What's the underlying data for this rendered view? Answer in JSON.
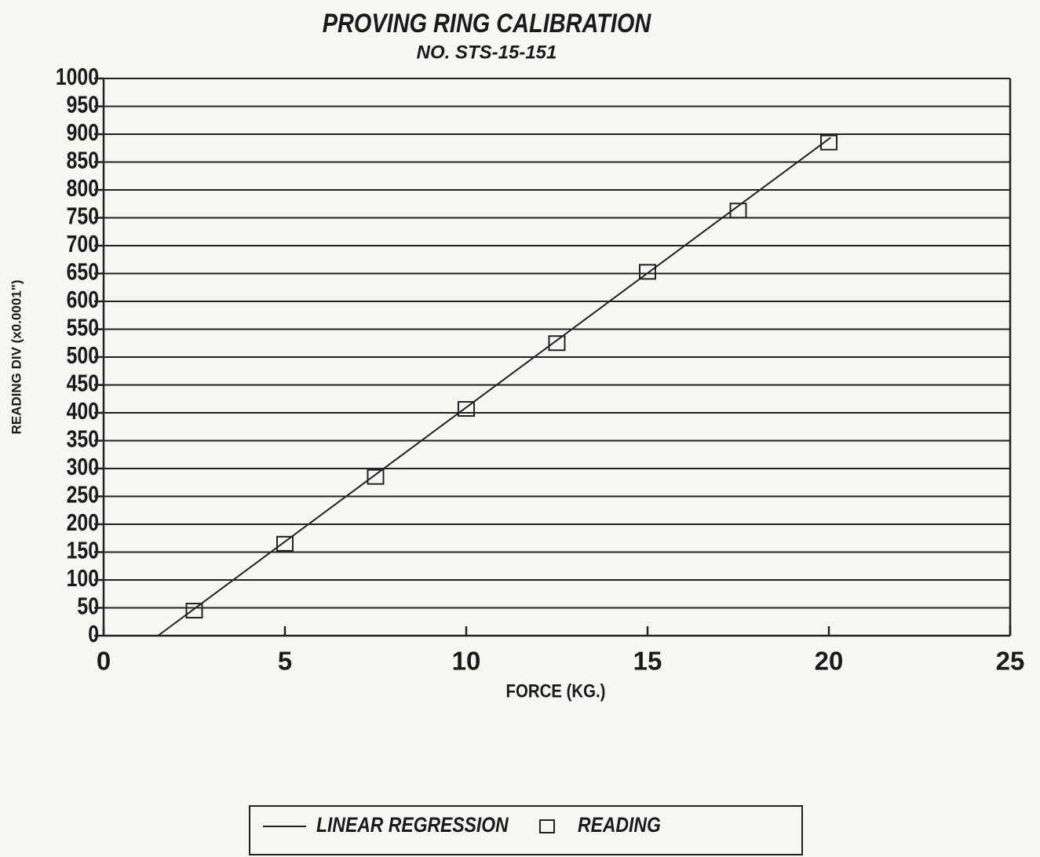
{
  "chart_data": {
    "type": "scatter",
    "title": "PROVING RING CALIBRATION",
    "subtitle": "NO. STS-15-151",
    "x_label": "FORCE (KG.)",
    "y_label": "READING DIV (x0.0001\")",
    "xlim": [
      0,
      25
    ],
    "ylim": [
      0,
      1000
    ],
    "xticks": [
      0,
      5,
      10,
      15,
      20,
      25
    ],
    "yticks": [
      0,
      50,
      100,
      150,
      200,
      250,
      300,
      350,
      400,
      450,
      500,
      550,
      600,
      650,
      700,
      750,
      800,
      850,
      900,
      950,
      1000
    ],
    "grid": true,
    "legend": "bottom",
    "series": [
      {
        "name": "LINEAR REGRESSION",
        "mode": "line",
        "color": "#222222",
        "x": [
          1.5,
          20.05
        ],
        "values": [
          0,
          894
        ]
      },
      {
        "name": "READING",
        "mode": "markers",
        "marker": "square",
        "color": "#222222",
        "x": [
          2.5,
          5,
          7.5,
          10,
          12.5,
          15,
          17.5,
          20
        ],
        "values": [
          45,
          165,
          285,
          407,
          525,
          653,
          763,
          885
        ]
      }
    ]
  }
}
